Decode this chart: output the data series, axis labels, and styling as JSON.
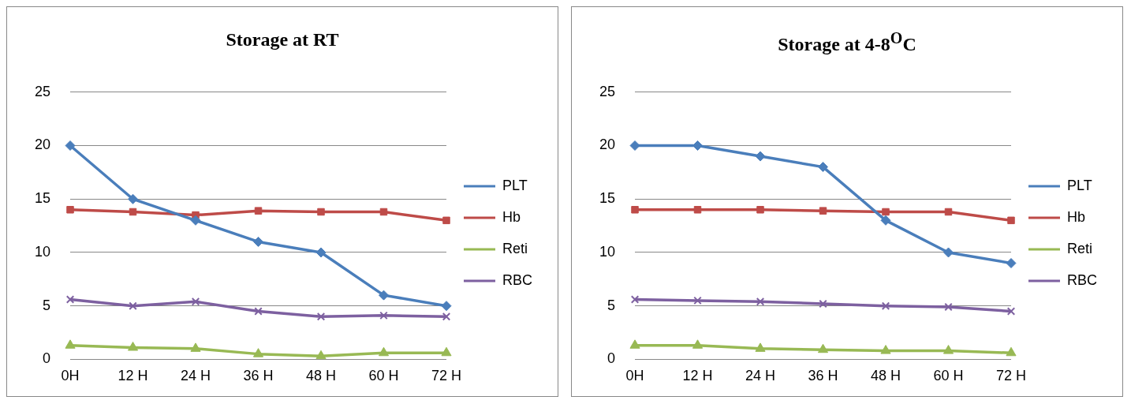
{
  "chart_data": [
    {
      "type": "line",
      "title": "Storage at RT",
      "categories": [
        "0H",
        "12 H",
        "24 H",
        "36 H",
        "48 H",
        "60 H",
        "72 H"
      ],
      "ylim": [
        0,
        25
      ],
      "yticks": [
        0,
        5,
        10,
        15,
        20,
        25
      ],
      "grid": "y",
      "legend": "right",
      "series": [
        {
          "name": "PLT",
          "color": "#4a7ebb",
          "marker": "diamond",
          "values": [
            20,
            15,
            13,
            11,
            10,
            6,
            5
          ]
        },
        {
          "name": "Hb",
          "color": "#be4b48",
          "marker": "square",
          "values": [
            14,
            13.8,
            13.5,
            13.9,
            13.8,
            13.8,
            13
          ]
        },
        {
          "name": "Reti",
          "color": "#98b954",
          "marker": "triangle",
          "values": [
            1.3,
            1.1,
            1,
            0.5,
            0.3,
            0.6,
            0.6
          ]
        },
        {
          "name": "RBC",
          "color": "#7d60a0",
          "marker": "cross",
          "values": [
            5.6,
            5,
            5.4,
            4.5,
            4,
            4.1,
            4
          ]
        }
      ]
    },
    {
      "type": "line",
      "title": "Storage at 4-8$^{O}$C",
      "categories": [
        "0H",
        "12 H",
        "24 H",
        "36 H",
        "48 H",
        "60 H",
        "72 H"
      ],
      "ylim": [
        0,
        25
      ],
      "yticks": [
        0,
        5,
        10,
        15,
        20,
        25
      ],
      "grid": "y",
      "legend": "right",
      "series": [
        {
          "name": "PLT",
          "color": "#4a7ebb",
          "marker": "diamond",
          "values": [
            20,
            20,
            19,
            18,
            13,
            10,
            9
          ]
        },
        {
          "name": "Hb",
          "color": "#be4b48",
          "marker": "square",
          "values": [
            14,
            14,
            14,
            13.9,
            13.8,
            13.8,
            13
          ]
        },
        {
          "name": "Reti",
          "color": "#98b954",
          "marker": "triangle",
          "values": [
            1.3,
            1.3,
            1,
            0.9,
            0.8,
            0.8,
            0.6
          ]
        },
        {
          "name": "RBC",
          "color": "#7d60a0",
          "marker": "cross",
          "values": [
            5.6,
            5.5,
            5.4,
            5.2,
            5,
            4.9,
            4.5
          ]
        }
      ]
    }
  ]
}
